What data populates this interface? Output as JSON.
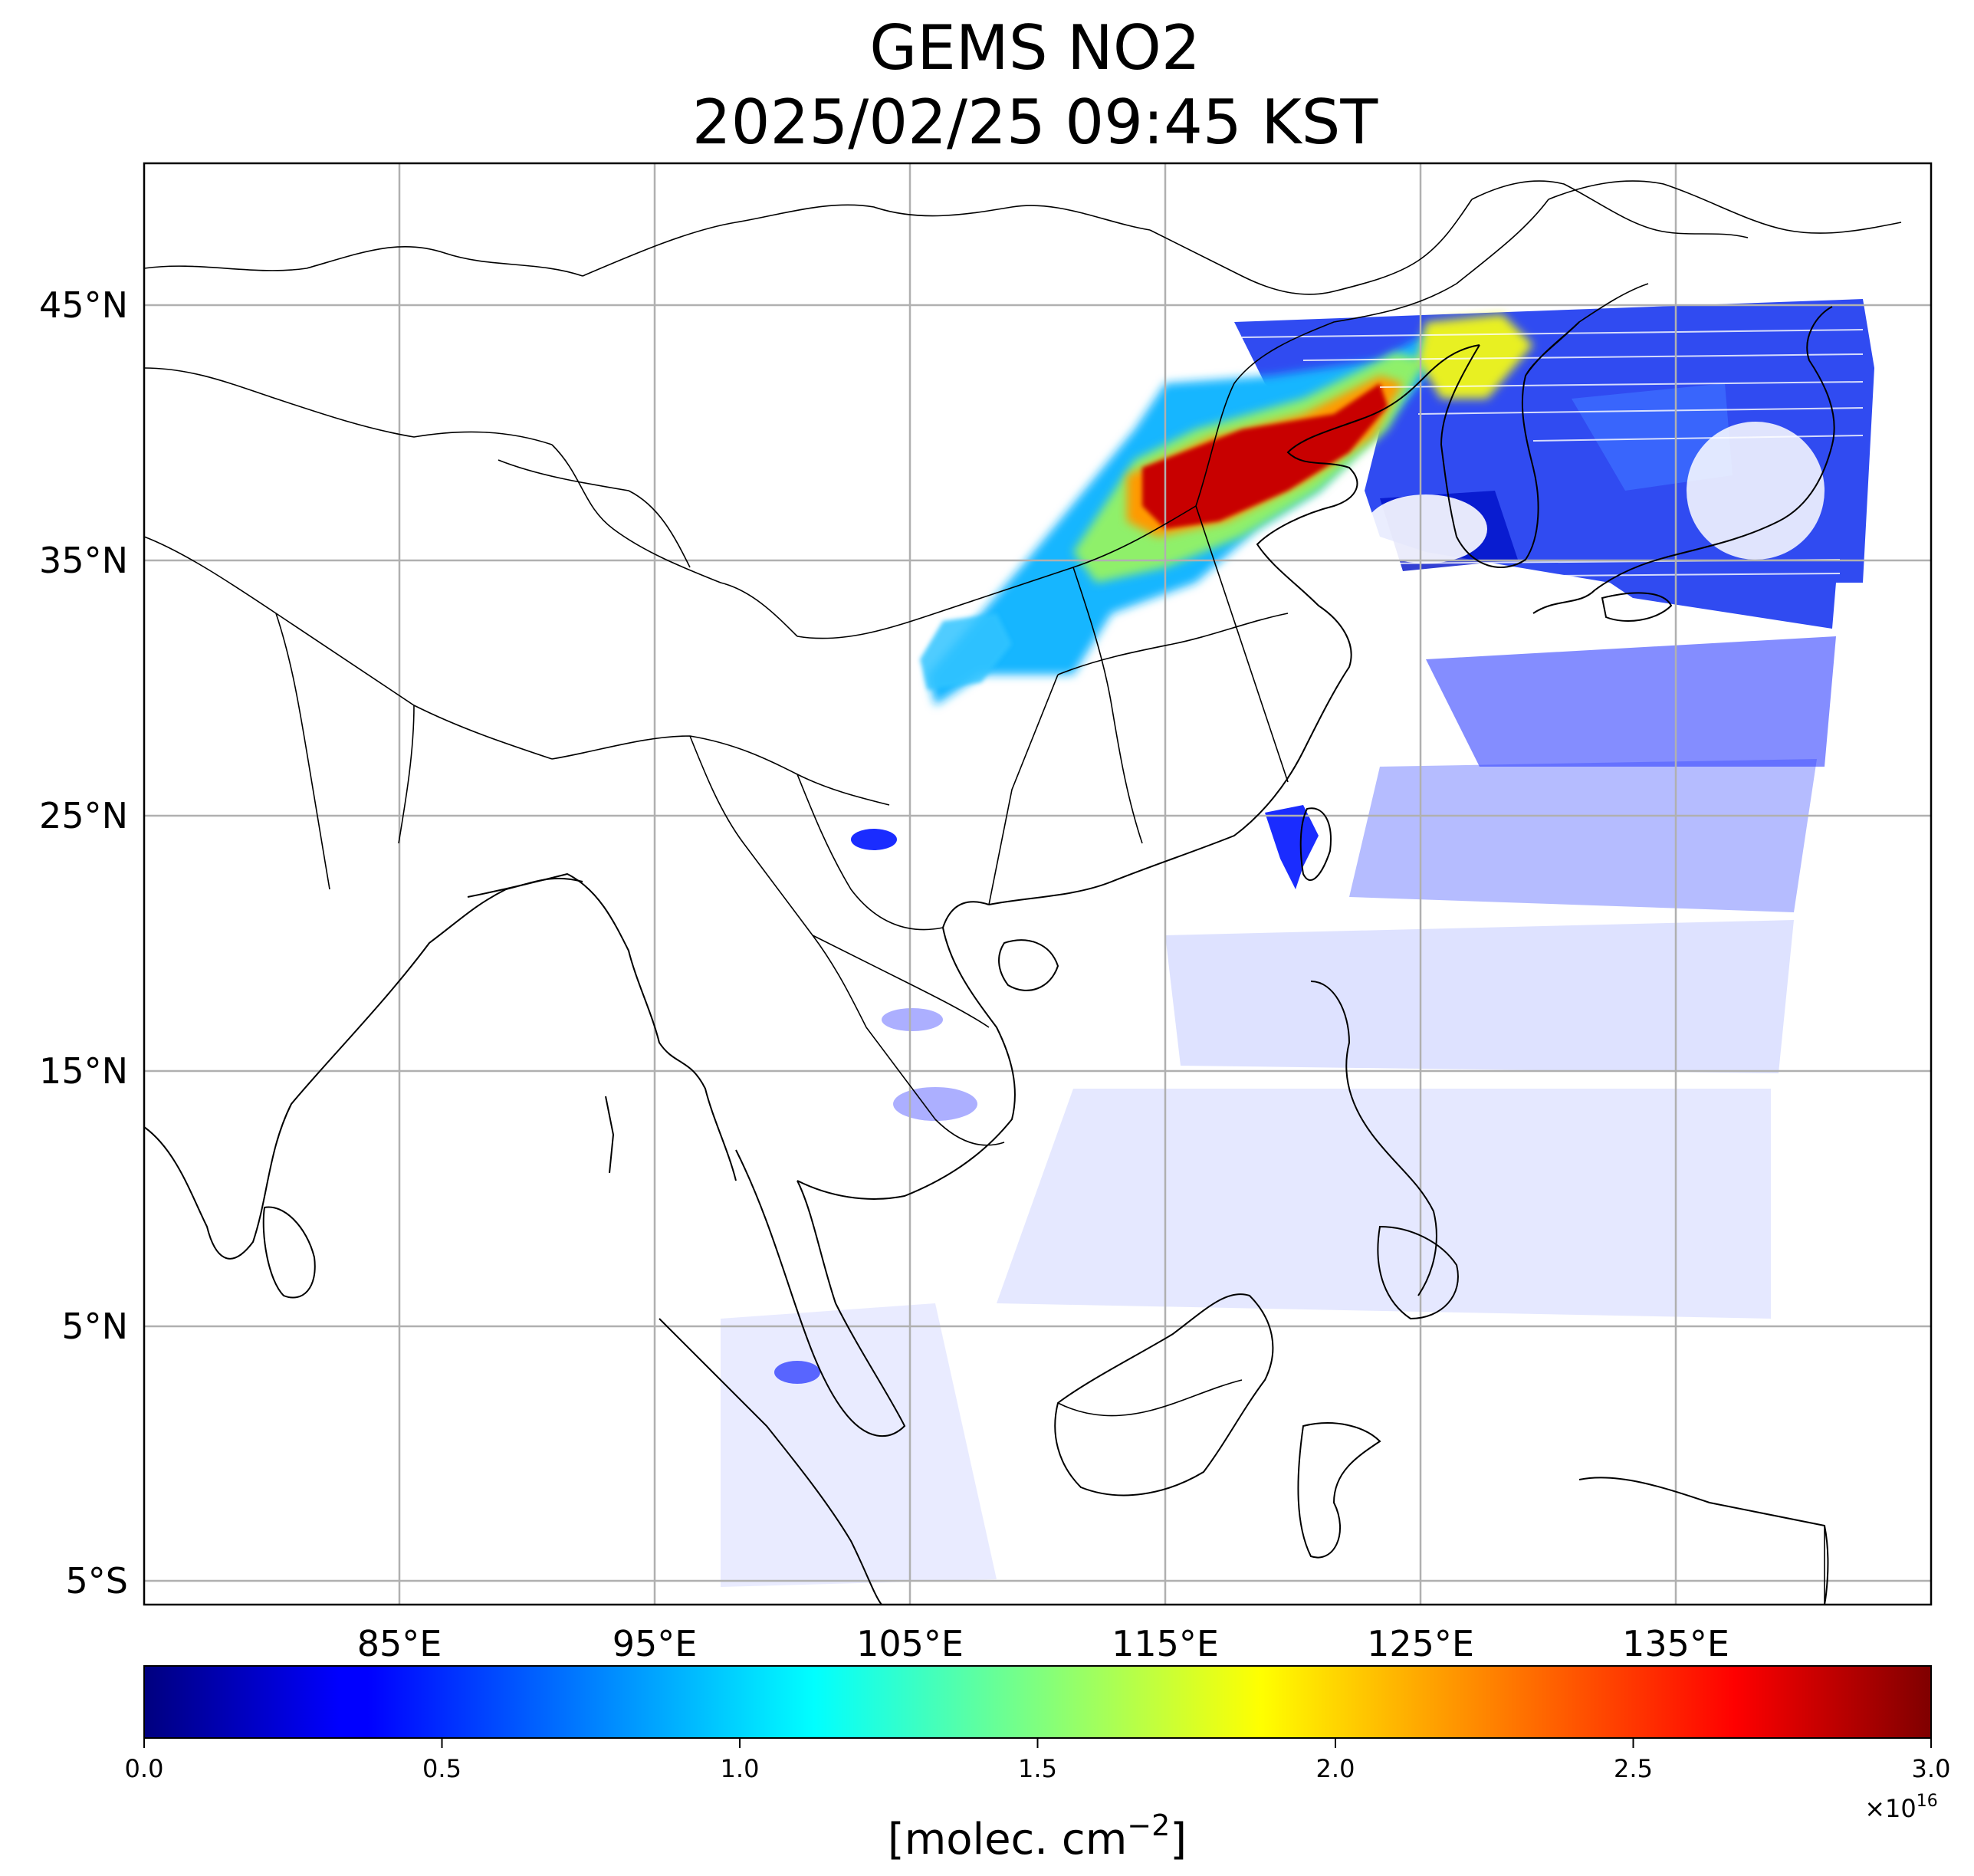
{
  "title": {
    "line1": "GEMS NO2",
    "line2": "2025/02/25 09:45 KST"
  },
  "map": {
    "lat_ticks": [
      "45°N",
      "35°N",
      "25°N",
      "15°N",
      "5°N",
      "5°S"
    ],
    "lon_ticks": [
      "85°E",
      "95°E",
      "105°E",
      "115°E",
      "125°E",
      "135°E"
    ],
    "lat_range": [
      -6,
      50.5
    ],
    "lon_range": [
      75,
      145
    ],
    "gridlines": true
  },
  "colorbar": {
    "colormap": "jet",
    "min": 0.0,
    "max": 3.0,
    "ticks": [
      "0.0",
      "0.5",
      "1.0",
      "1.5",
      "2.0",
      "2.5",
      "3.0"
    ],
    "scale_prefix": "×10",
    "scale_exp": "16",
    "label_prefix": "[molec. cm",
    "label_exp": "−2",
    "label_suffix": "]"
  },
  "colors": {
    "gridline": "#b0b0b0",
    "coastline": "#000000",
    "jet_0": "#00007f",
    "jet_mid": "#7fff7f",
    "jet_1": "#7f0000"
  }
}
